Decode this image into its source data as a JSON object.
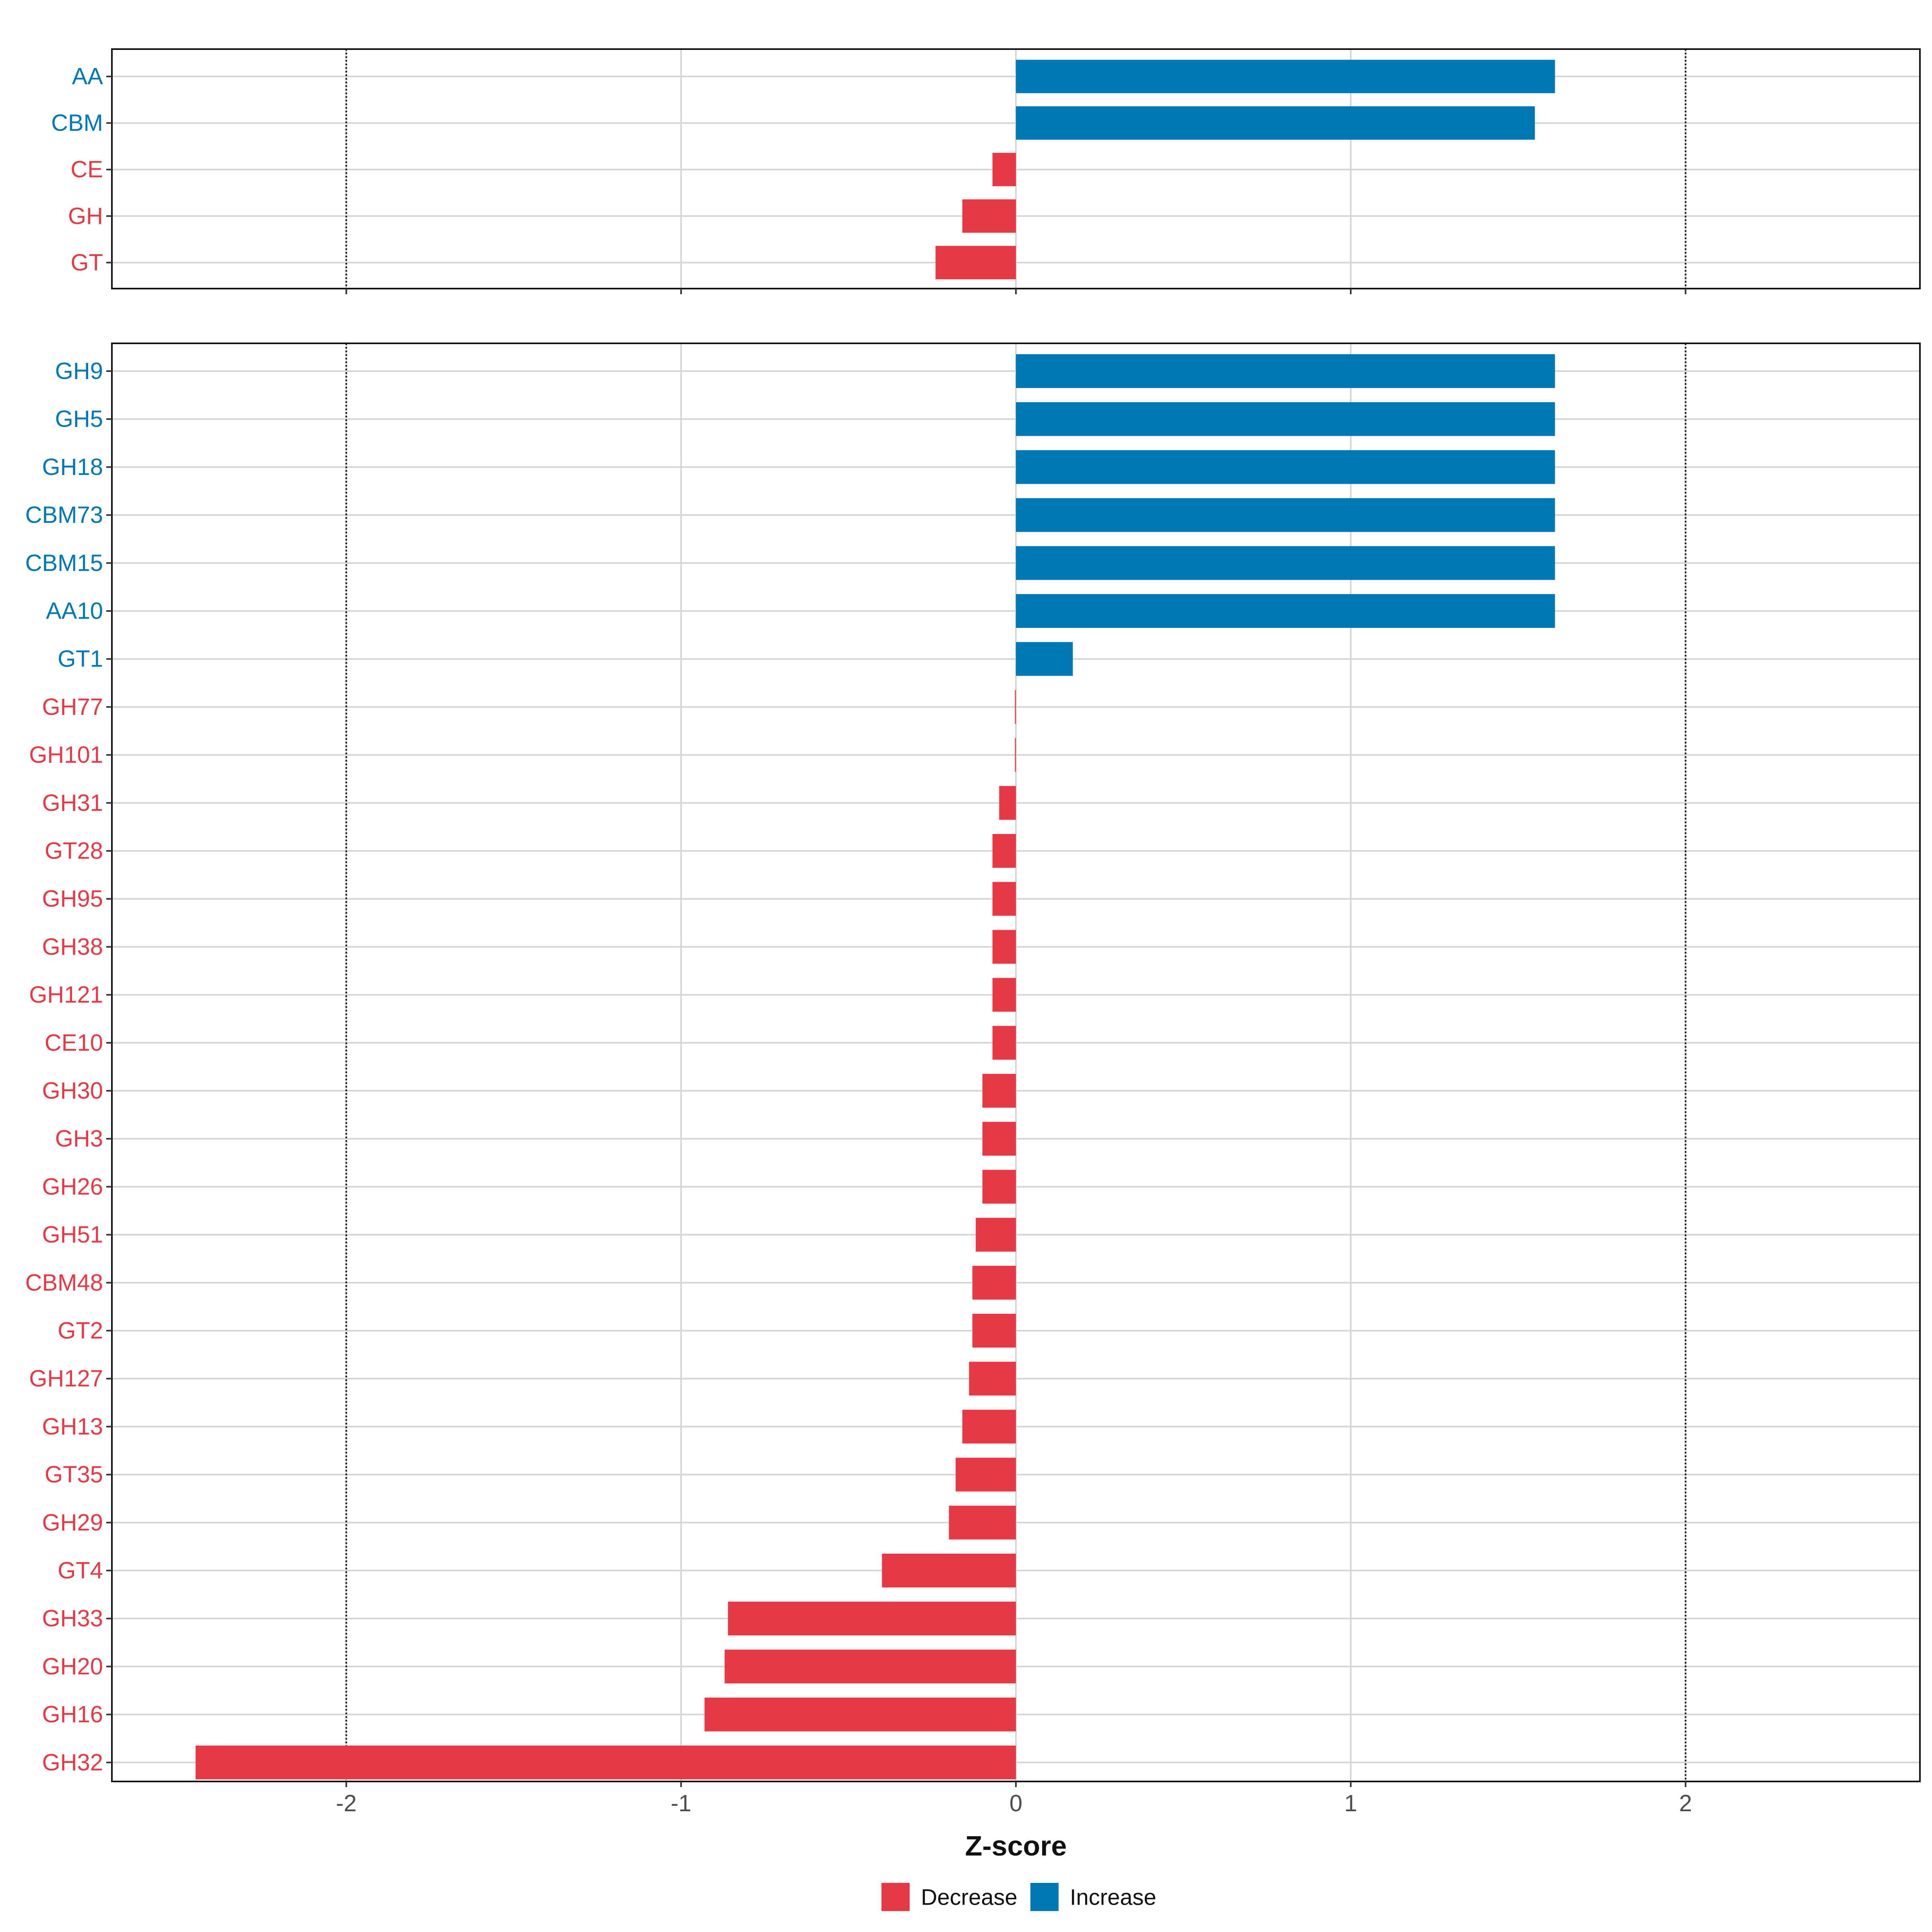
{
  "chart_data": {
    "type": "bar",
    "orientation": "horizontal",
    "xlabel": "Z-score",
    "xlim": [
      -2.7,
      2.7
    ],
    "x_ticks": [
      -2,
      -1,
      0,
      1,
      2
    ],
    "x_tick_labels": [
      "-2",
      "-1",
      "0",
      "1",
      "2"
    ],
    "reference_lines": [
      -2,
      2
    ],
    "colors": {
      "Decrease": "#e63946",
      "Increase": "#0077b6"
    },
    "legend": {
      "position": "bottom",
      "entries": [
        "Decrease",
        "Increase"
      ]
    },
    "panels": [
      {
        "name": "class",
        "categories": [
          "AA",
          "CBM",
          "CE",
          "GH",
          "GT"
        ],
        "values": [
          1.61,
          1.55,
          -0.07,
          -0.16,
          -0.24
        ],
        "groups": [
          "Increase",
          "Increase",
          "Decrease",
          "Decrease",
          "Decrease"
        ]
      },
      {
        "name": "family",
        "categories": [
          "GH9",
          "GH5",
          "GH18",
          "CBM73",
          "CBM15",
          "AA10",
          "GT1",
          "GH77",
          "GH101",
          "GH31",
          "GT28",
          "GH95",
          "GH38",
          "GH121",
          "CE10",
          "GH30",
          "GH3",
          "GH26",
          "GH51",
          "CBM48",
          "GT2",
          "GH127",
          "GH13",
          "GT35",
          "GH29",
          "GT4",
          "GH33",
          "GH20",
          "GH16",
          "GH32"
        ],
        "values": [
          1.61,
          1.61,
          1.61,
          1.61,
          1.61,
          1.61,
          0.17,
          -0.003,
          -0.003,
          -0.05,
          -0.07,
          -0.07,
          -0.07,
          -0.07,
          -0.07,
          -0.1,
          -0.1,
          -0.1,
          -0.12,
          -0.13,
          -0.13,
          -0.14,
          -0.16,
          -0.18,
          -0.2,
          -0.4,
          -0.86,
          -0.87,
          -0.93,
          -2.45
        ],
        "groups": [
          "Increase",
          "Increase",
          "Increase",
          "Increase",
          "Increase",
          "Increase",
          "Increase",
          "Decrease",
          "Decrease",
          "Decrease",
          "Decrease",
          "Decrease",
          "Decrease",
          "Decrease",
          "Decrease",
          "Decrease",
          "Decrease",
          "Decrease",
          "Decrease",
          "Decrease",
          "Decrease",
          "Decrease",
          "Decrease",
          "Decrease",
          "Decrease",
          "Decrease",
          "Decrease",
          "Decrease",
          "Decrease",
          "Decrease"
        ]
      }
    ]
  }
}
